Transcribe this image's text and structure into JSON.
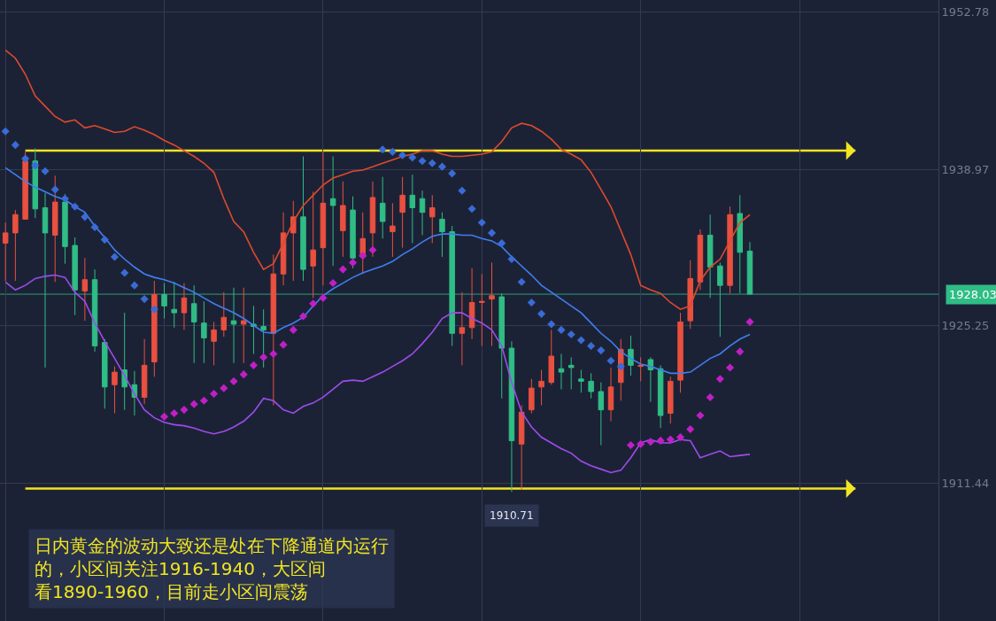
{
  "chart_data": {
    "type": "candlestick",
    "categories": [
      null,
      null,
      null,
      null,
      null,
      null,
      null,
      null,
      null,
      null,
      null,
      null,
      null,
      null,
      null,
      null,
      null,
      null,
      null,
      null,
      null,
      null,
      null,
      null,
      null,
      null,
      null,
      null,
      null,
      null,
      null,
      null,
      null,
      null,
      null,
      null,
      null,
      null,
      null,
      null,
      null,
      null,
      null,
      null,
      null,
      null,
      null,
      null,
      null,
      null,
      null,
      null,
      null,
      null,
      null,
      null,
      null,
      null,
      null,
      null,
      null,
      null,
      null,
      null,
      null,
      null,
      null,
      null,
      null,
      null,
      null,
      null,
      null,
      null,
      null,
      null
    ],
    "ohlc": [
      [
        1932.5,
        1934.3,
        1929.2,
        1933.4
      ],
      [
        1933.4,
        1935.4,
        1929.2,
        1935.0
      ],
      [
        1934.6,
        1940.5,
        1934.6,
        1939.7
      ],
      [
        1939.7,
        1940.8,
        1934.7,
        1935.5
      ],
      [
        1935.6,
        1936.9,
        1921.6,
        1933.4
      ],
      [
        1933.2,
        1938.4,
        1929.1,
        1936.1
      ],
      [
        1936.1,
        1936.8,
        1930.7,
        1932.2
      ],
      [
        1932.3,
        1933.0,
        1926.2,
        1928.4
      ],
      [
        1928.3,
        1931.2,
        1925.7,
        1929.3
      ],
      [
        1929.3,
        1930.2,
        1923.0,
        1923.5
      ],
      [
        1923.8,
        1924.1,
        1918.0,
        1919.9
      ],
      [
        1920.1,
        1921.7,
        1917.6,
        1921.2
      ],
      [
        1921.4,
        1926.4,
        1917.9,
        1919.9
      ],
      [
        1920.1,
        1921.3,
        1917.4,
        1919.0
      ],
      [
        1919.0,
        1924.1,
        1918.4,
        1921.8
      ],
      [
        1922.1,
        1929.2,
        1920.8,
        1928.0
      ],
      [
        1928.0,
        1929.0,
        1925.9,
        1927.0
      ],
      [
        1926.7,
        1929.1,
        1925.1,
        1926.4
      ],
      [
        1926.4,
        1929.0,
        1924.9,
        1927.7
      ],
      [
        1927.2,
        1928.8,
        1922.0,
        1925.6
      ],
      [
        1925.5,
        1927.4,
        1922.0,
        1924.2
      ],
      [
        1923.9,
        1925.6,
        1921.8,
        1924.9
      ],
      [
        1924.9,
        1928.2,
        1924.3,
        1926.0
      ],
      [
        1925.7,
        1928.6,
        1922.0,
        1925.4
      ],
      [
        1925.4,
        1928.6,
        1922.0,
        1925.7
      ],
      [
        1925.4,
        1927.0,
        1922.8,
        1925.2
      ],
      [
        1925.2,
        1926.7,
        1921.6,
        1924.9
      ],
      [
        1924.6,
        1931.5,
        1918.3,
        1929.8
      ],
      [
        1929.8,
        1935.2,
        1928.8,
        1933.4
      ],
      [
        1933.4,
        1936.2,
        1929.2,
        1934.8
      ],
      [
        1934.8,
        1940.1,
        1929.2,
        1930.2
      ],
      [
        1930.5,
        1937.0,
        1927.7,
        1931.9
      ],
      [
        1932.1,
        1940.5,
        1928.8,
        1936.0
      ],
      [
        1936.4,
        1940.1,
        1930.5,
        1935.8
      ],
      [
        1933.6,
        1937.9,
        1931.3,
        1935.8
      ],
      [
        1935.4,
        1936.6,
        1930.3,
        1931.2
      ],
      [
        1931.3,
        1935.2,
        1929.8,
        1932.9
      ],
      [
        1933.4,
        1937.9,
        1931.3,
        1936.5
      ],
      [
        1936.0,
        1938.3,
        1932.9,
        1934.4
      ],
      [
        1933.5,
        1936.0,
        1931.3,
        1934.0
      ],
      [
        1935.2,
        1938.3,
        1932.1,
        1936.7
      ],
      [
        1936.7,
        1938.5,
        1932.5,
        1935.6
      ],
      [
        1936.4,
        1937.1,
        1933.2,
        1935.2
      ],
      [
        1934.8,
        1936.7,
        1932.5,
        1935.6
      ],
      [
        1934.6,
        1935.2,
        1931.3,
        1933.5
      ],
      [
        1933.5,
        1934.0,
        1923.5,
        1924.6
      ],
      [
        1924.6,
        1928.2,
        1921.8,
        1925.1
      ],
      [
        1925.1,
        1930.3,
        1924.1,
        1927.3
      ],
      [
        1927.3,
        1929.8,
        1923.5,
        1927.4
      ],
      [
        1927.6,
        1930.8,
        1923.5,
        1927.9
      ],
      [
        1927.8,
        1928.1,
        1918.9,
        1923.3
      ],
      [
        1923.3,
        1923.9,
        1910.71,
        1915.2
      ],
      [
        1914.9,
        1918.3,
        1910.9,
        1917.7
      ],
      [
        1917.9,
        1920.6,
        1917.6,
        1919.8
      ],
      [
        1919.9,
        1921.4,
        1918.3,
        1920.4
      ],
      [
        1920.3,
        1924.9,
        1920.1,
        1922.6
      ],
      [
        1921.5,
        1922.8,
        1919.7,
        1921.2
      ],
      [
        1921.8,
        1922.5,
        1919.7,
        1921.6
      ],
      [
        1920.6,
        1921.4,
        1919.4,
        1920.4
      ],
      [
        1920.4,
        1921.1,
        1918.9,
        1919.5
      ],
      [
        1919.5,
        1920.3,
        1914.8,
        1917.9
      ],
      [
        1917.9,
        1921.6,
        1916.9,
        1919.9
      ],
      [
        1920.3,
        1924.1,
        1918.7,
        1923.2
      ],
      [
        1923.2,
        1924.4,
        1920.9,
        1921.8
      ],
      [
        1921.7,
        1922.5,
        1920.4,
        1921.8
      ],
      [
        1922.3,
        1922.5,
        1918.6,
        1921.4
      ],
      [
        1921.5,
        1921.8,
        1916.3,
        1917.4
      ],
      [
        1917.6,
        1920.8,
        1916.7,
        1920.4
      ],
      [
        1920.5,
        1926.4,
        1919.4,
        1925.6
      ],
      [
        1925.7,
        1931.0,
        1925.0,
        1929.4
      ],
      [
        1929.1,
        1933.7,
        1928.4,
        1933.2
      ],
      [
        1933.2,
        1935.0,
        1927.7,
        1930.4
      ],
      [
        1930.5,
        1930.8,
        1924.3,
        1928.8
      ],
      [
        1928.8,
        1935.7,
        1928.1,
        1935.0
      ],
      [
        1935.1,
        1936.7,
        1928.1,
        1931.7
      ],
      [
        1931.8,
        1932.6,
        1928.03,
        1928.03
      ]
    ],
    "colors": [
      "#e9503f",
      "#e9503f",
      "#e9503f",
      "#2fbd85",
      "#2fbd85",
      "#e9503f",
      "#2fbd85",
      "#2fbd85",
      "#e9503f",
      "#2fbd85",
      "#2fbd85",
      "#e9503f",
      "#2fbd85",
      "#2fbd85",
      "#e9503f",
      "#e9503f",
      "#2fbd85",
      "#2fbd85",
      "#e9503f",
      "#2fbd85",
      "#2fbd85",
      "#e9503f",
      "#e9503f",
      "#2fbd85",
      "#e9503f",
      "#2fbd85",
      "#2fbd85",
      "#e9503f",
      "#e9503f",
      "#e9503f",
      "#2fbd85",
      "#e9503f",
      "#e9503f",
      "#2fbd85",
      "#e9503f",
      "#2fbd85",
      "#e9503f",
      "#e9503f",
      "#2fbd85",
      "#e9503f",
      "#e9503f",
      "#2fbd85",
      "#2fbd85",
      "#e9503f",
      "#2fbd85",
      "#2fbd85",
      "#e9503f",
      "#e9503f",
      "#e9503f",
      "#e9503f",
      "#2fbd85",
      "#2fbd85",
      "#e9503f",
      "#e9503f",
      "#e9503f",
      "#e9503f",
      "#2fbd85",
      "#2fbd85",
      "#2fbd85",
      "#2fbd85",
      "#2fbd85",
      "#e9503f",
      "#e9503f",
      "#2fbd85",
      "#e9503f",
      "#2fbd85",
      "#2fbd85",
      "#e9503f",
      "#e9503f",
      "#e9503f",
      "#e9503f",
      "#2fbd85",
      "#2fbd85",
      "#e9503f",
      "#2fbd85",
      "#2fbd85"
    ],
    "series": [
      {
        "type": "line",
        "color": "#df4a2c",
        "values": [
          1949.4,
          1948.7,
          1947.3,
          1945.4,
          1944.5,
          1943.6,
          1943.1,
          1943.3,
          1942.6,
          1942.8,
          1942.5,
          1942.2,
          1942.3,
          1942.7,
          1942.4,
          1942.0,
          1941.5,
          1941.1,
          1940.6,
          1940.1,
          1939.5,
          1938.7,
          1936.4,
          1934.4,
          1933.5,
          1931.7,
          1930.2,
          1930.7,
          1932.5,
          1934.4,
          1935.8,
          1936.7,
          1937.6,
          1938.2,
          1938.5,
          1938.8,
          1938.9,
          1939.2,
          1939.5,
          1939.8,
          1940.1,
          1940.3,
          1940.6,
          1940.6,
          1940.3,
          1940.1,
          1940.1,
          1940.2,
          1940.3,
          1940.5,
          1941.4,
          1942.6,
          1943.0,
          1942.8,
          1942.3,
          1941.6,
          1940.7,
          1940.3,
          1939.8,
          1938.7,
          1937.2,
          1935.7,
          1933.6,
          1931.5,
          1928.8,
          1928.4,
          1928.1,
          1927.3,
          1926.7,
          1927.0,
          1929.2,
          1930.4,
          1931.1,
          1932.7,
          1934.3,
          1935.0
        ]
      },
      {
        "type": "line",
        "color": "#3f7fef",
        "values": [
          1939.1,
          1938.5,
          1937.9,
          1937.4,
          1937.0,
          1936.6,
          1936.3,
          1935.7,
          1935.2,
          1934.0,
          1933.0,
          1931.9,
          1931.1,
          1930.4,
          1929.8,
          1929.5,
          1929.3,
          1929.0,
          1928.6,
          1928.2,
          1927.7,
          1927.2,
          1926.8,
          1926.4,
          1925.9,
          1925.3,
          1924.7,
          1924.6,
          1925.1,
          1925.5,
          1926.0,
          1927.0,
          1927.9,
          1928.5,
          1929.0,
          1929.5,
          1929.9,
          1930.2,
          1930.5,
          1930.9,
          1931.5,
          1932.0,
          1932.6,
          1933.1,
          1933.3,
          1933.3,
          1933.2,
          1933.2,
          1932.9,
          1932.7,
          1932.2,
          1931.3,
          1930.5,
          1929.7,
          1928.8,
          1928.2,
          1927.6,
          1927.0,
          1926.4,
          1925.5,
          1924.6,
          1923.9,
          1923.0,
          1922.4,
          1921.9,
          1921.7,
          1921.4,
          1921.1,
          1921.1,
          1921.2,
          1921.8,
          1922.4,
          1922.8,
          1923.5,
          1924.1,
          1924.5
        ]
      },
      {
        "type": "line",
        "color": "#9d4cec",
        "values": [
          1929.1,
          1928.4,
          1928.8,
          1929.4,
          1929.6,
          1929.7,
          1929.5,
          1928.2,
          1927.4,
          1925.5,
          1923.9,
          1922.4,
          1920.9,
          1919.3,
          1917.9,
          1917.2,
          1916.8,
          1916.6,
          1916.5,
          1916.3,
          1916.0,
          1915.8,
          1916.0,
          1916.4,
          1916.9,
          1917.7,
          1918.9,
          1918.7,
          1917.9,
          1917.6,
          1918.2,
          1918.5,
          1919.0,
          1919.7,
          1920.4,
          1920.5,
          1920.4,
          1920.8,
          1921.2,
          1921.7,
          1922.2,
          1922.8,
          1923.7,
          1924.7,
          1925.9,
          1926.4,
          1926.4,
          1925.9,
          1925.5,
          1924.9,
          1923.5,
          1920.3,
          1917.7,
          1916.4,
          1915.5,
          1915.0,
          1914.5,
          1914.1,
          1913.4,
          1913.0,
          1912.7,
          1912.4,
          1912.6,
          1913.7,
          1915.0,
          1915.3,
          1915.0,
          1915.0,
          1915.3,
          1915.2,
          1913.7,
          1914.0,
          1914.3,
          1913.8,
          1913.9,
          1914.0
        ]
      },
      {
        "type": "scatter",
        "color": "#3a6bd6",
        "marker": "diamond",
        "values": [
          1942.3,
          1941.1,
          1939.9,
          1939.3,
          1938.8,
          1937.2,
          1936.4,
          1935.7,
          1934.8,
          1933.9,
          1932.8,
          1931.3,
          1929.9,
          1928.8,
          1927.6,
          1926.7,
          null,
          null,
          null,
          null,
          null,
          null,
          null,
          null,
          null,
          null,
          null,
          null,
          null,
          null,
          null,
          null,
          null,
          null,
          null,
          null,
          null,
          null,
          1940.7,
          1940.5,
          1940.2,
          1940.0,
          1939.7,
          1939.5,
          1939.2,
          1938.6,
          1937.1,
          1935.5,
          1934.3,
          1933.4,
          1932.5,
          1931.1,
          1929.1,
          1927.3,
          1926.3,
          1925.4,
          1924.9,
          1924.5,
          1924.0,
          1923.5,
          1923.1,
          1922.2,
          1921.7,
          null,
          null,
          null,
          null,
          null,
          null,
          null,
          null,
          null,
          null,
          null,
          null,
          null
        ]
      },
      {
        "type": "scatter",
        "color": "#c01fc6",
        "marker": "diamond",
        "values": [
          null,
          null,
          null,
          null,
          null,
          null,
          null,
          null,
          null,
          null,
          null,
          null,
          null,
          null,
          null,
          null,
          1917.3,
          1917.6,
          1917.9,
          1918.4,
          1918.7,
          1919.3,
          1919.8,
          1920.4,
          1921.0,
          1921.8,
          1922.5,
          1922.8,
          1923.6,
          1924.9,
          1926.1,
          1927.2,
          1927.7,
          1929.0,
          1930.2,
          1930.8,
          1931.4,
          1931.9,
          null,
          null,
          null,
          null,
          null,
          null,
          null,
          null,
          null,
          null,
          null,
          null,
          null,
          null,
          null,
          null,
          null,
          null,
          null,
          null,
          null,
          null,
          null,
          null,
          null,
          1914.8,
          1914.9,
          1915.1,
          1915.2,
          1915.3,
          1915.5,
          1916.2,
          1917.4,
          1919.0,
          1920.6,
          1921.6,
          1923.0,
          1925.6
        ]
      }
    ],
    "ylim": [
      1899.4,
      1953.8
    ],
    "yticks": [
      1911.44,
      1925.25,
      1938.97,
      1952.78
    ],
    "tick_labels": "y",
    "grid": true,
    "ref_lines": [
      {
        "axis": "y",
        "value": 1940.6,
        "color": "#f2e521"
      },
      {
        "axis": "y",
        "value": 1911.0,
        "color": "#f2e521"
      },
      {
        "axis": "y",
        "value": 1928.03,
        "label": "1928.03",
        "color": "#2fbd85"
      }
    ],
    "annotations": [
      "日内黄金的波动大致还是处在下降通道内运行的，小区间关注1916-1940，大区间看1890-1960，目前走小区间震荡",
      {
        "text": "1910.71",
        "y": 1910.71
      }
    ]
  }
}
